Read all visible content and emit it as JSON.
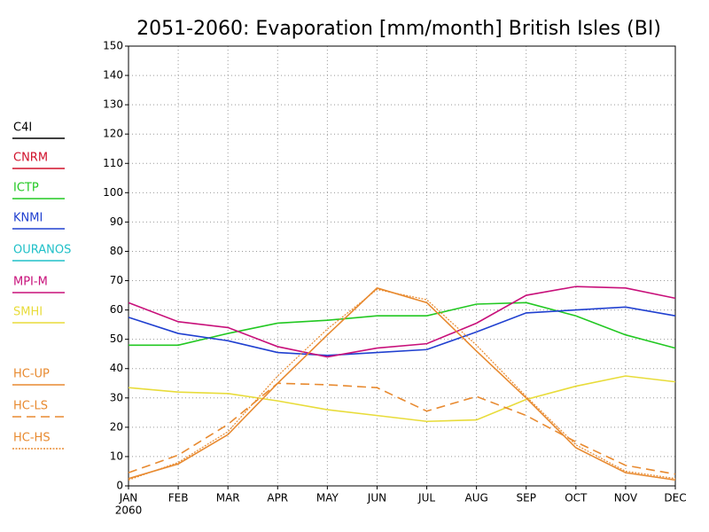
{
  "chart_data": {
    "type": "line",
    "title": "2051-2060: Evaporation [mm/month] British Isles (BI)",
    "categories": [
      "JAN",
      "FEB",
      "MAR",
      "APR",
      "MAY",
      "JUN",
      "JUL",
      "AUG",
      "SEP",
      "OCT",
      "NOV",
      "DEC"
    ],
    "x_sublabel": "2060",
    "ylim": [
      0,
      150
    ],
    "yticks": [
      0,
      10,
      20,
      30,
      40,
      50,
      60,
      70,
      80,
      90,
      100,
      110,
      120,
      130,
      140,
      150
    ],
    "grid": true,
    "legend": "left",
    "series": [
      {
        "name": "C4I",
        "color": "#000000",
        "style": "solid",
        "values": [
          null,
          null,
          null,
          null,
          null,
          null,
          null,
          null,
          null,
          null,
          null,
          null
        ]
      },
      {
        "name": "CNRM",
        "color": "#d0102a",
        "style": "solid",
        "values": [
          null,
          null,
          null,
          null,
          null,
          null,
          null,
          null,
          null,
          null,
          null,
          null
        ]
      },
      {
        "name": "ICTP",
        "color": "#22c822",
        "style": "solid",
        "values": [
          48,
          48,
          52,
          55.5,
          56.5,
          58,
          58,
          62,
          62.5,
          58,
          51.5,
          47
        ]
      },
      {
        "name": "KNMI",
        "color": "#2040d0",
        "style": "solid",
        "values": [
          57.5,
          52,
          49.5,
          45.5,
          44.5,
          45.5,
          46.5,
          52.5,
          59,
          60,
          61,
          58
        ]
      },
      {
        "name": "OURANOS",
        "color": "#20c0c8",
        "style": "solid",
        "values": [
          null,
          null,
          null,
          null,
          null,
          null,
          null,
          null,
          null,
          null,
          null,
          null
        ]
      },
      {
        "name": "MPI-M",
        "color": "#c8107a",
        "style": "solid",
        "values": [
          62.5,
          56,
          54,
          47.5,
          44,
          47,
          48.5,
          55.5,
          65,
          68,
          67.5,
          64
        ]
      },
      {
        "name": "SMHI",
        "color": "#e8dc3a",
        "style": "solid",
        "values": [
          33.5,
          32,
          31.5,
          29,
          26,
          24,
          22,
          22.5,
          29.5,
          34,
          37.5,
          35.5
        ]
      },
      {
        "name": "HC-UP",
        "color": "#e88a30",
        "style": "solid",
        "values": [
          2.5,
          7.5,
          17.5,
          35,
          51.5,
          67.5,
          62.5,
          46,
          30,
          13,
          4.5,
          2
        ]
      },
      {
        "name": "HC-LS",
        "color": "#e88a30",
        "style": "dashed",
        "values": [
          4.5,
          10.5,
          21,
          35,
          34.5,
          33.5,
          25.5,
          30.5,
          24,
          15,
          7,
          4
        ]
      },
      {
        "name": "HC-HS",
        "color": "#e88a30",
        "style": "dotted",
        "values": [
          2,
          8,
          18.5,
          37.5,
          53.5,
          67,
          63.5,
          48,
          30.5,
          14,
          5,
          2.5
        ]
      }
    ]
  }
}
